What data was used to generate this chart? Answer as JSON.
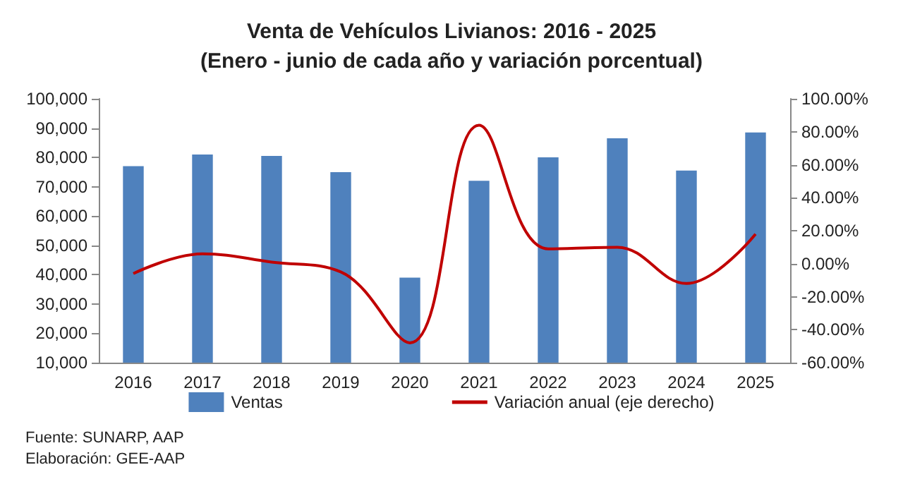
{
  "chart_data": {
    "type": "bar",
    "title": "Venta de Vehículos Livianos: 2016 - 2025",
    "subtitle": "(Enero - junio de cada año y variación porcentual)",
    "categories": [
      "2016",
      "2017",
      "2018",
      "2019",
      "2020",
      "2021",
      "2022",
      "2023",
      "2024",
      "2025"
    ],
    "series": [
      {
        "name": "Ventas",
        "color": "#4f81bd",
        "values": [
          77000,
          81000,
          80500,
          75000,
          39000,
          72000,
          80000,
          86500,
          75500,
          88500
        ]
      },
      {
        "name": "Variación anual (eje derecho)",
        "type": "line",
        "axis": "y2",
        "color": "#c00000",
        "values": [
          -6,
          6,
          1,
          -5,
          -48,
          84,
          9,
          10,
          -12,
          18
        ]
      }
    ],
    "ylim": [
      10000,
      100000
    ],
    "yticks": [
      {
        "value": 10000,
        "label": "10,000"
      },
      {
        "value": 20000,
        "label": "20,000"
      },
      {
        "value": 30000,
        "label": "30,000"
      },
      {
        "value": 40000,
        "label": "40,000"
      },
      {
        "value": 50000,
        "label": "50,000"
      },
      {
        "value": 60000,
        "label": "60,000"
      },
      {
        "value": 70000,
        "label": "70,000"
      },
      {
        "value": 80000,
        "label": "80,000"
      },
      {
        "value": 90000,
        "label": "90,000"
      },
      {
        "value": 100000,
        "label": "100,000"
      }
    ],
    "y2lim": [
      -60,
      100
    ],
    "y2ticks": [
      {
        "value": -60,
        "label": "-60.00%"
      },
      {
        "value": -40,
        "label": "-40.00%"
      },
      {
        "value": -20,
        "label": "-20.00%"
      },
      {
        "value": 0,
        "label": "0.00%"
      },
      {
        "value": 20,
        "label": "20.00%"
      },
      {
        "value": 40,
        "label": "40.00%"
      },
      {
        "value": 60,
        "label": "60.00%"
      },
      {
        "value": 80,
        "label": "80.00%"
      },
      {
        "value": 100,
        "label": "100.00%"
      }
    ],
    "grid": false,
    "legend": "bottom",
    "marker": "none",
    "annotations": [
      "Fuente: SUNARP, AAP",
      "Elaboración: GEE-AAP"
    ]
  }
}
